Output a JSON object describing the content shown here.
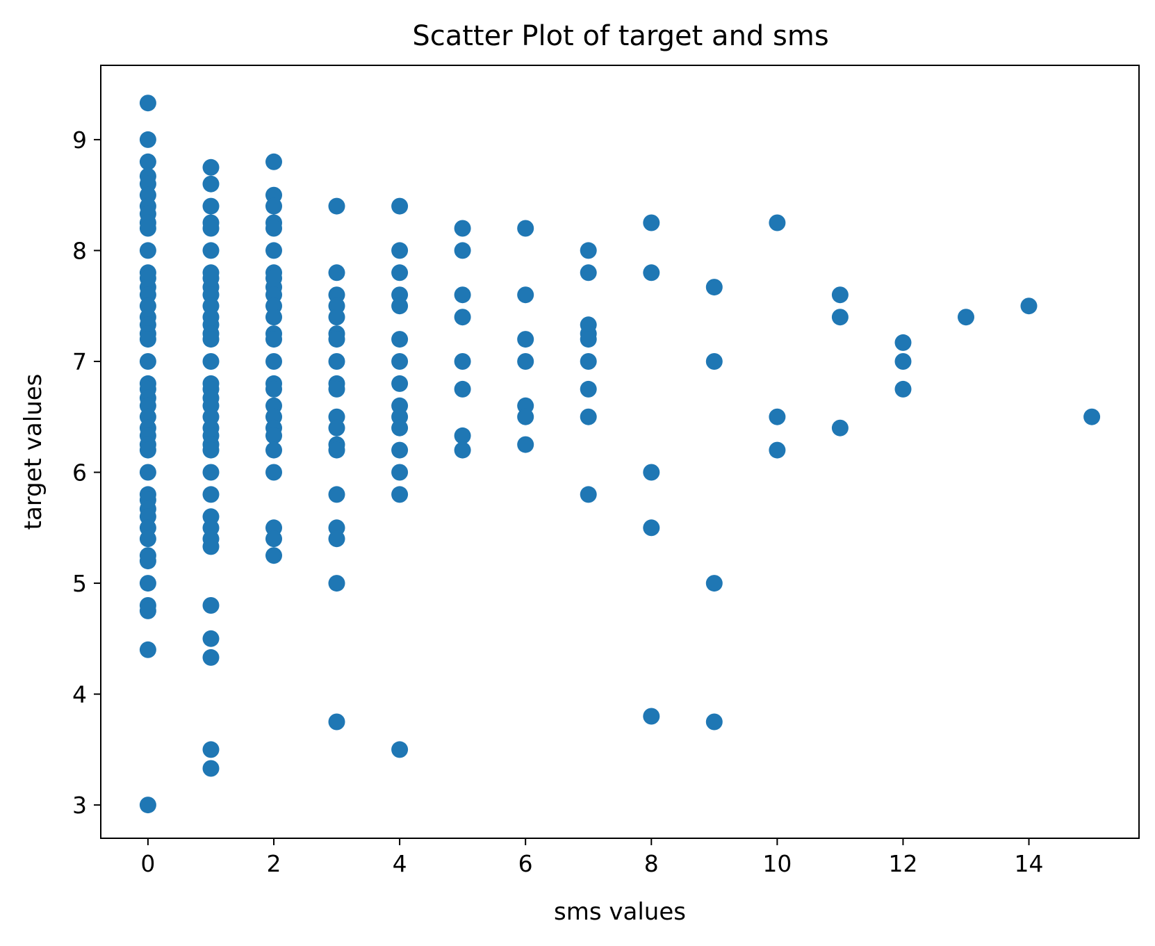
{
  "chart_data": {
    "type": "scatter",
    "title": "Scatter Plot of target and sms",
    "xlabel": "sms values",
    "ylabel": "target values",
    "xlim": [
      -0.75,
      15.75
    ],
    "ylim": [
      2.7,
      9.67
    ],
    "xticks": [
      0,
      2,
      4,
      6,
      8,
      10,
      12,
      14
    ],
    "yticks": [
      3,
      4,
      5,
      6,
      7,
      8,
      9
    ],
    "grid": false,
    "legend": "none",
    "color": "#1f77b4",
    "series": [
      {
        "points": [
          [
            0,
            9.33
          ],
          [
            0,
            9.0
          ],
          [
            0,
            8.8
          ],
          [
            0,
            8.67
          ],
          [
            0,
            8.6
          ],
          [
            0,
            8.5
          ],
          [
            0,
            8.4
          ],
          [
            0,
            8.33
          ],
          [
            0,
            8.25
          ],
          [
            0,
            8.2
          ],
          [
            0,
            8.0
          ],
          [
            0,
            7.8
          ],
          [
            0,
            7.75
          ],
          [
            0,
            7.67
          ],
          [
            0,
            7.6
          ],
          [
            0,
            7.5
          ],
          [
            0,
            7.4
          ],
          [
            0,
            7.33
          ],
          [
            0,
            7.25
          ],
          [
            0,
            7.2
          ],
          [
            0,
            7.0
          ],
          [
            0,
            6.8
          ],
          [
            0,
            6.75
          ],
          [
            0,
            6.67
          ],
          [
            0,
            6.6
          ],
          [
            0,
            6.5
          ],
          [
            0,
            6.4
          ],
          [
            0,
            6.33
          ],
          [
            0,
            6.25
          ],
          [
            0,
            6.2
          ],
          [
            0,
            6.0
          ],
          [
            0,
            5.8
          ],
          [
            0,
            5.75
          ],
          [
            0,
            5.67
          ],
          [
            0,
            5.6
          ],
          [
            0,
            5.5
          ],
          [
            0,
            5.4
          ],
          [
            0,
            5.25
          ],
          [
            0,
            5.2
          ],
          [
            0,
            5.0
          ],
          [
            0,
            4.8
          ],
          [
            0,
            4.75
          ],
          [
            0,
            4.4
          ],
          [
            0,
            3.0
          ],
          [
            1,
            8.75
          ],
          [
            1,
            8.6
          ],
          [
            1,
            8.4
          ],
          [
            1,
            8.25
          ],
          [
            1,
            8.2
          ],
          [
            1,
            8.0
          ],
          [
            1,
            7.8
          ],
          [
            1,
            7.75
          ],
          [
            1,
            7.67
          ],
          [
            1,
            7.6
          ],
          [
            1,
            7.5
          ],
          [
            1,
            7.4
          ],
          [
            1,
            7.33
          ],
          [
            1,
            7.25
          ],
          [
            1,
            7.2
          ],
          [
            1,
            7.0
          ],
          [
            1,
            6.8
          ],
          [
            1,
            6.75
          ],
          [
            1,
            6.67
          ],
          [
            1,
            6.6
          ],
          [
            1,
            6.5
          ],
          [
            1,
            6.4
          ],
          [
            1,
            6.33
          ],
          [
            1,
            6.25
          ],
          [
            1,
            6.2
          ],
          [
            1,
            6.0
          ],
          [
            1,
            5.8
          ],
          [
            1,
            5.6
          ],
          [
            1,
            5.5
          ],
          [
            1,
            5.4
          ],
          [
            1,
            5.33
          ],
          [
            1,
            4.8
          ],
          [
            1,
            4.5
          ],
          [
            1,
            4.33
          ],
          [
            1,
            3.5
          ],
          [
            1,
            3.33
          ],
          [
            2,
            8.8
          ],
          [
            2,
            8.5
          ],
          [
            2,
            8.4
          ],
          [
            2,
            8.25
          ],
          [
            2,
            8.2
          ],
          [
            2,
            8.0
          ],
          [
            2,
            7.8
          ],
          [
            2,
            7.75
          ],
          [
            2,
            7.67
          ],
          [
            2,
            7.6
          ],
          [
            2,
            7.5
          ],
          [
            2,
            7.4
          ],
          [
            2,
            7.25
          ],
          [
            2,
            7.2
          ],
          [
            2,
            7.0
          ],
          [
            2,
            6.8
          ],
          [
            2,
            6.75
          ],
          [
            2,
            6.6
          ],
          [
            2,
            6.5
          ],
          [
            2,
            6.4
          ],
          [
            2,
            6.33
          ],
          [
            2,
            6.2
          ],
          [
            2,
            6.0
          ],
          [
            2,
            5.5
          ],
          [
            2,
            5.4
          ],
          [
            2,
            5.25
          ],
          [
            3,
            8.4
          ],
          [
            3,
            7.8
          ],
          [
            3,
            7.6
          ],
          [
            3,
            7.5
          ],
          [
            3,
            7.4
          ],
          [
            3,
            7.25
          ],
          [
            3,
            7.2
          ],
          [
            3,
            7.0
          ],
          [
            3,
            6.8
          ],
          [
            3,
            6.75
          ],
          [
            3,
            6.5
          ],
          [
            3,
            6.4
          ],
          [
            3,
            6.25
          ],
          [
            3,
            6.2
          ],
          [
            3,
            5.8
          ],
          [
            3,
            5.5
          ],
          [
            3,
            5.4
          ],
          [
            3,
            5.0
          ],
          [
            3,
            3.75
          ],
          [
            4,
            8.4
          ],
          [
            4,
            8.0
          ],
          [
            4,
            7.8
          ],
          [
            4,
            7.6
          ],
          [
            4,
            7.5
          ],
          [
            4,
            7.2
          ],
          [
            4,
            7.0
          ],
          [
            4,
            6.8
          ],
          [
            4,
            6.6
          ],
          [
            4,
            6.5
          ],
          [
            4,
            6.4
          ],
          [
            4,
            6.2
          ],
          [
            4,
            6.0
          ],
          [
            4,
            5.8
          ],
          [
            4,
            3.5
          ],
          [
            5,
            8.2
          ],
          [
            5,
            8.0
          ],
          [
            5,
            7.6
          ],
          [
            5,
            7.4
          ],
          [
            5,
            7.0
          ],
          [
            5,
            6.75
          ],
          [
            5,
            6.33
          ],
          [
            5,
            6.2
          ],
          [
            6,
            8.2
          ],
          [
            6,
            7.6
          ],
          [
            6,
            7.2
          ],
          [
            6,
            7.0
          ],
          [
            6,
            6.6
          ],
          [
            6,
            6.5
          ],
          [
            6,
            6.25
          ],
          [
            7,
            8.0
          ],
          [
            7,
            7.8
          ],
          [
            7,
            7.33
          ],
          [
            7,
            7.25
          ],
          [
            7,
            7.2
          ],
          [
            7,
            7.0
          ],
          [
            7,
            6.75
          ],
          [
            7,
            6.5
          ],
          [
            7,
            5.8
          ],
          [
            8,
            8.25
          ],
          [
            8,
            7.8
          ],
          [
            8,
            6.0
          ],
          [
            8,
            5.5
          ],
          [
            8,
            3.8
          ],
          [
            9,
            7.67
          ],
          [
            9,
            7.0
          ],
          [
            9,
            5.0
          ],
          [
            9,
            3.75
          ],
          [
            10,
            8.25
          ],
          [
            10,
            6.5
          ],
          [
            10,
            6.2
          ],
          [
            11,
            7.6
          ],
          [
            11,
            7.4
          ],
          [
            11,
            6.4
          ],
          [
            12,
            7.17
          ],
          [
            12,
            7.0
          ],
          [
            12,
            6.75
          ],
          [
            13,
            7.4
          ],
          [
            14,
            7.5
          ],
          [
            15,
            6.5
          ]
        ]
      }
    ]
  }
}
